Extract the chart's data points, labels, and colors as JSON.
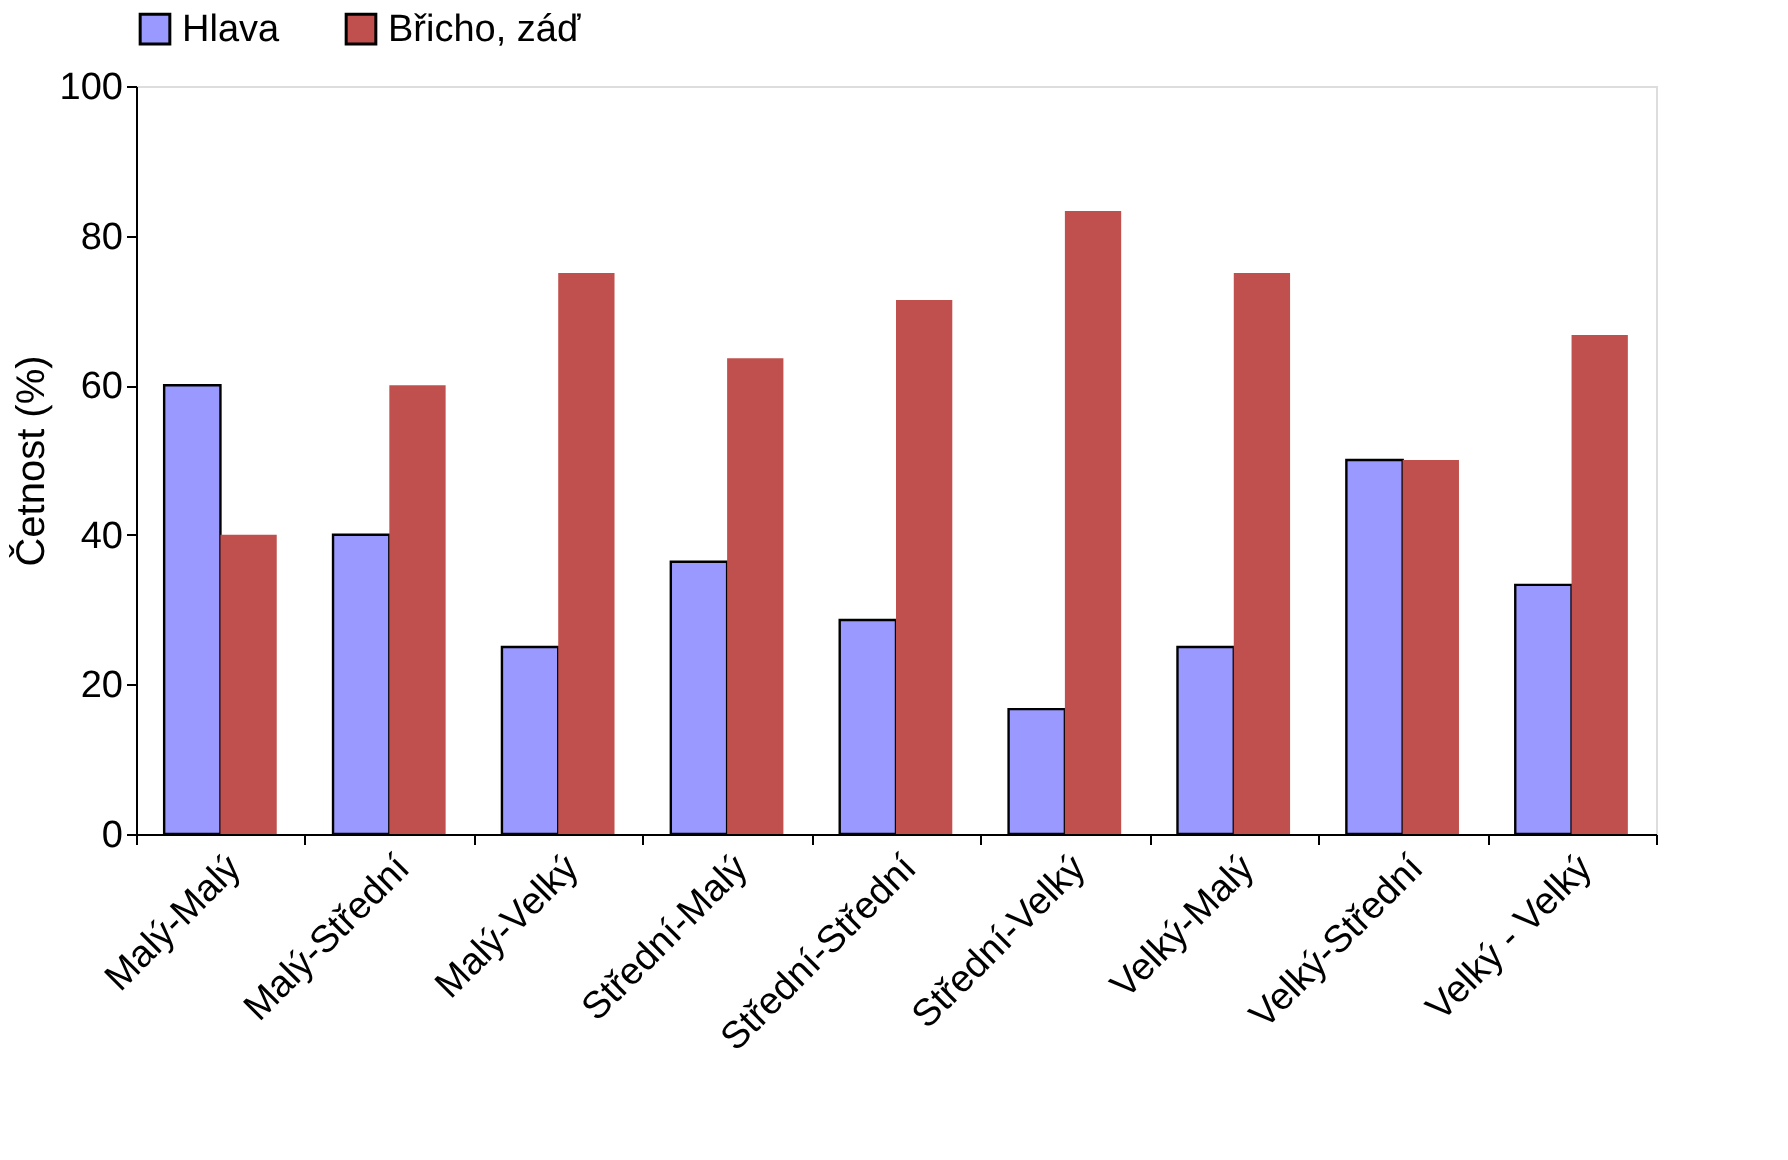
{
  "chart_data": {
    "type": "bar",
    "ylabel": "Četnost (%)",
    "categories": [
      "Malý-Malý",
      "Malý-Střední",
      "Malý-Velký",
      "Střední-Malý",
      "Střední-Střední",
      "Střední-Velký",
      "Velký-Malý",
      "Velký-Střední",
      "Velký - Velký"
    ],
    "series": [
      {
        "name": "Hlava",
        "color": "#9999ff",
        "values": [
          60,
          40,
          25,
          36.4,
          28.6,
          16.7,
          25,
          50,
          33.3
        ]
      },
      {
        "name": "Břicho, záď",
        "color": "#c0504d",
        "values": [
          40,
          60,
          75,
          63.6,
          71.4,
          83.3,
          75,
          50,
          66.7
        ]
      }
    ],
    "ylim": [
      0,
      100
    ],
    "yticks": [
      0,
      20,
      40,
      60,
      80,
      100
    ],
    "grid": false,
    "legend": "top"
  }
}
